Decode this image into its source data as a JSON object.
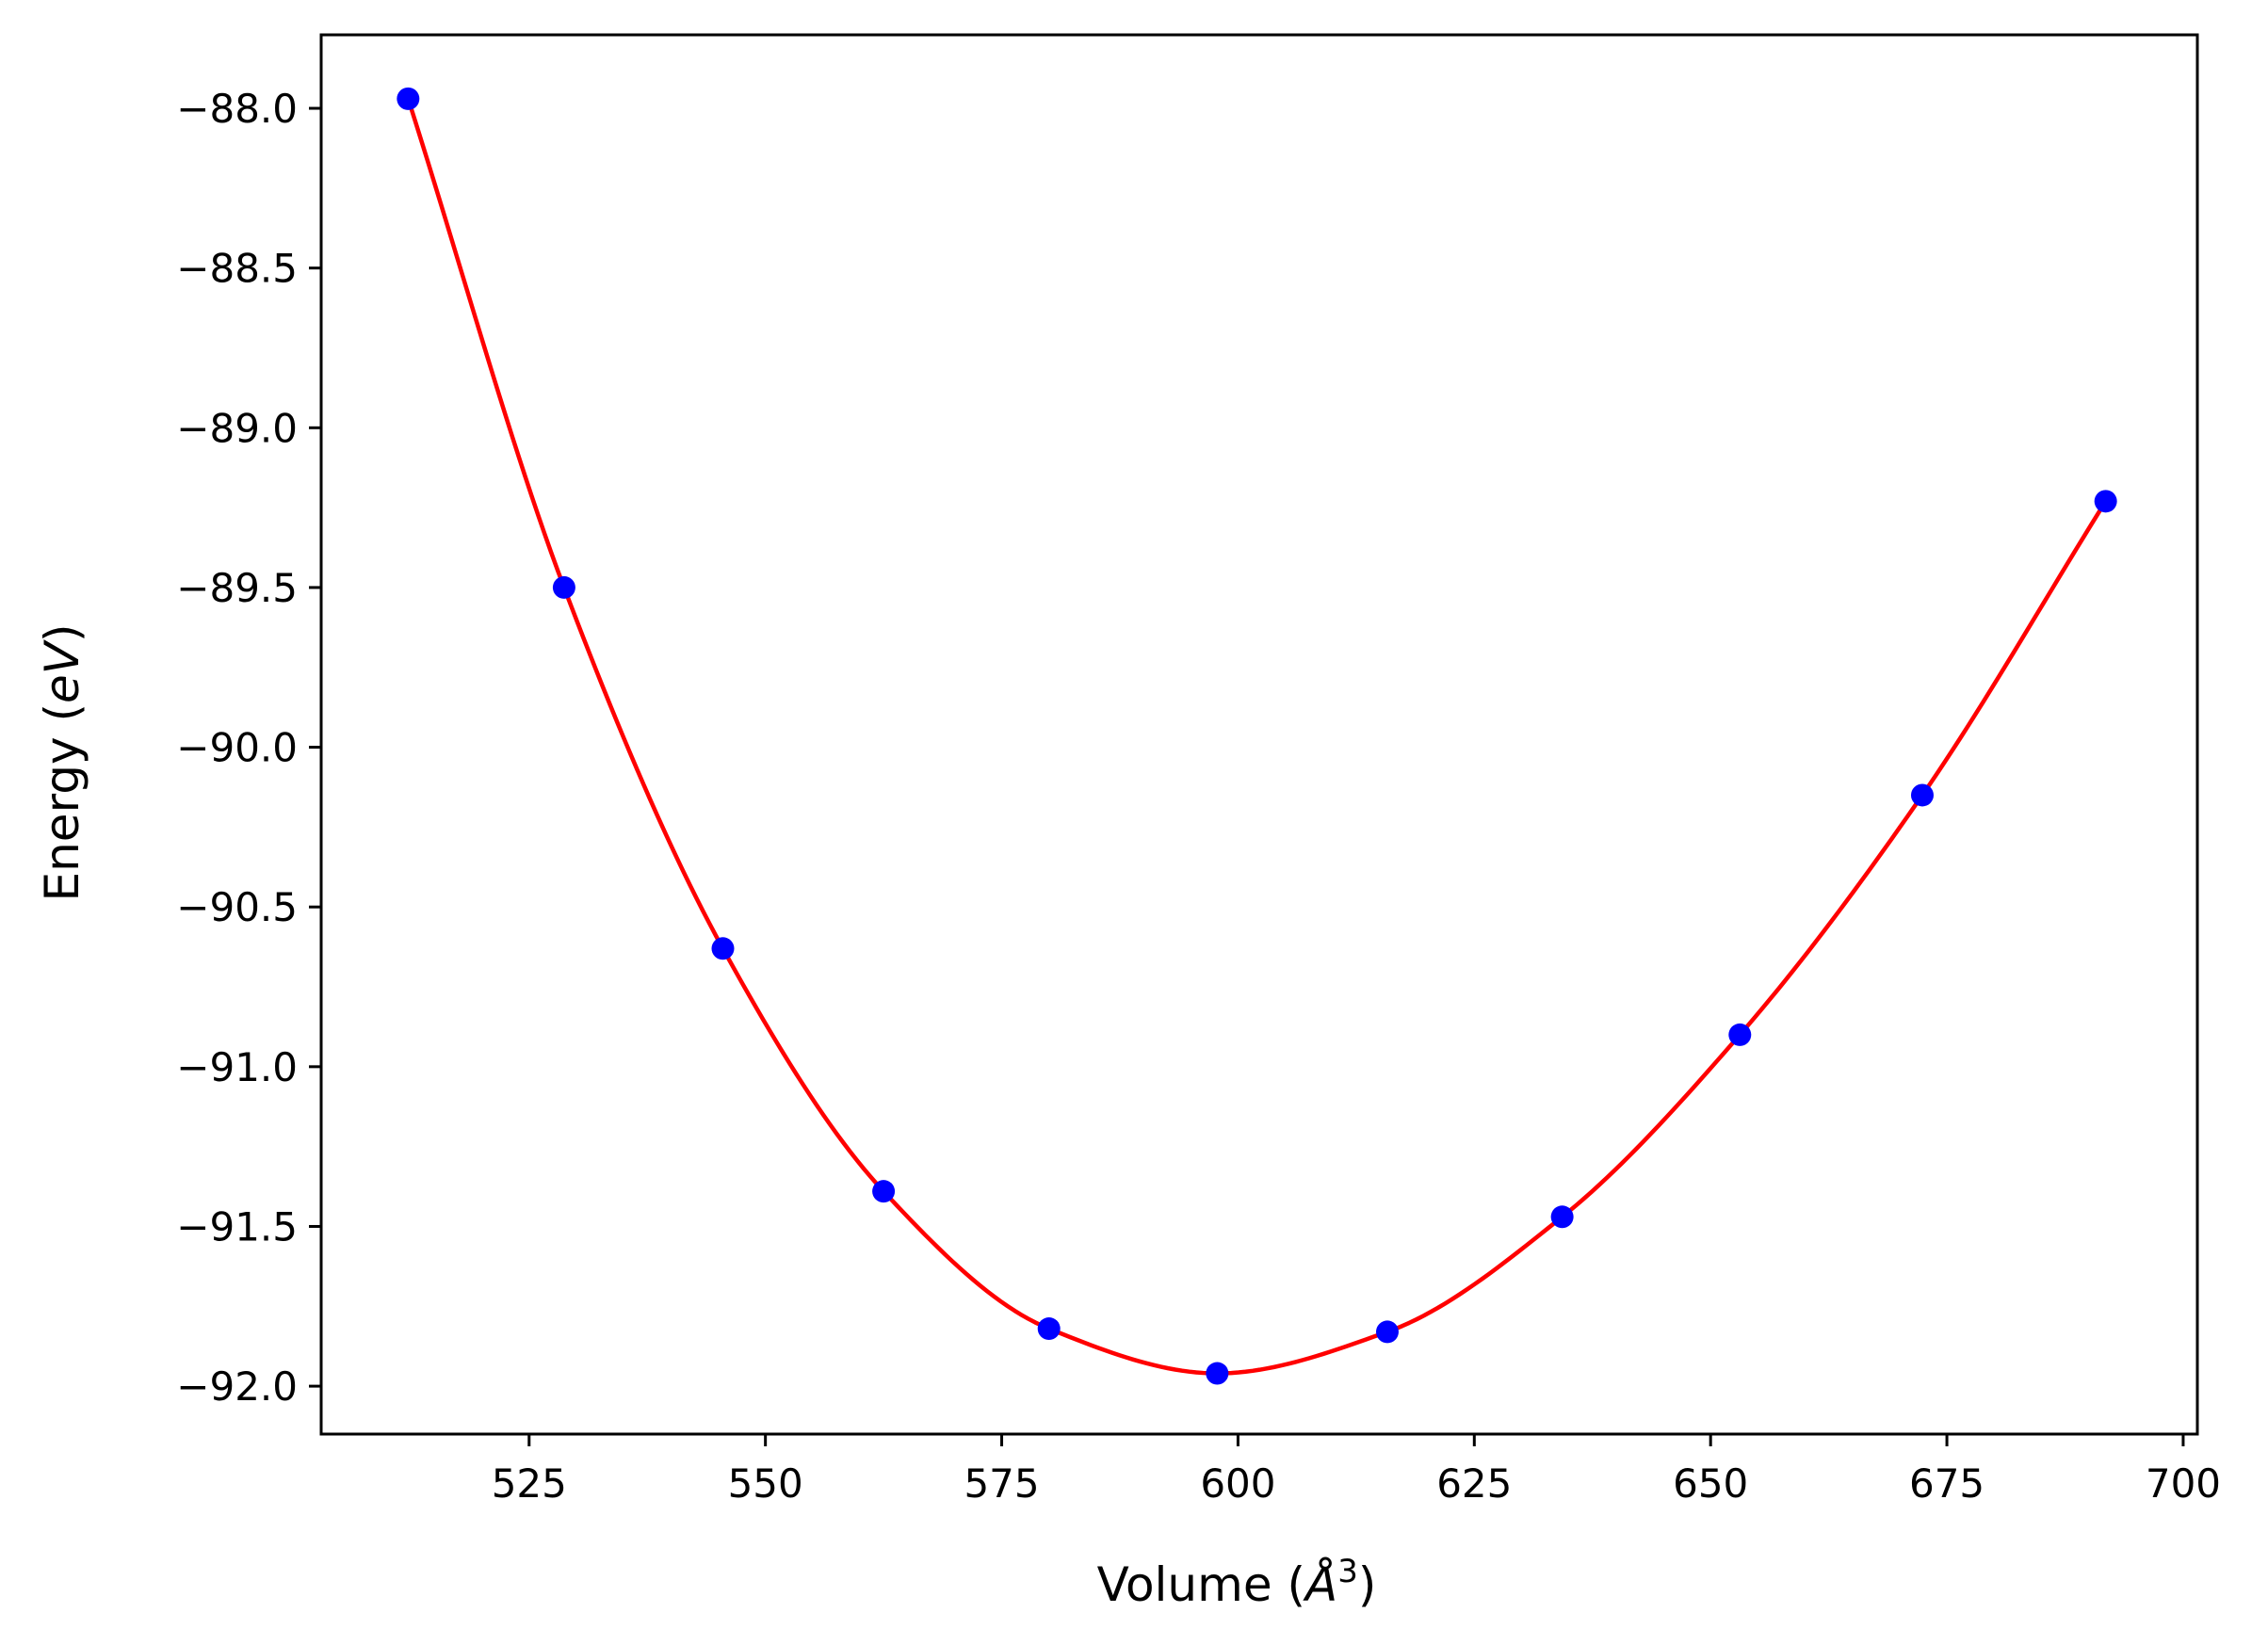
{
  "chart_data": {
    "type": "scatter",
    "title": "",
    "xlabel": {
      "prefix": "Volume (",
      "unit_symbol": "Å",
      "exponent": "3",
      "suffix": ")"
    },
    "ylabel": {
      "prefix": "Energy (",
      "unit_italic": "eV",
      "suffix": ")"
    },
    "xlim": [
      503.0,
      701.5
    ],
    "ylim": [
      -92.15,
      -87.77
    ],
    "x_ticks": [
      525,
      550,
      575,
      600,
      625,
      650,
      675,
      700
    ],
    "x_tick_labels": [
      "525",
      "550",
      "575",
      "600",
      "625",
      "650",
      "675",
      "700"
    ],
    "y_ticks": [
      -88.0,
      -88.5,
      -89.0,
      -89.5,
      -90.0,
      -90.5,
      -91.0,
      -91.5,
      -92.0
    ],
    "y_tick_labels": [
      "−88.0",
      "−88.5",
      "−89.0",
      "−89.5",
      "−90.0",
      "−90.5",
      "−91.0",
      "−91.5",
      "−92.0"
    ],
    "grid": false,
    "legend": "none",
    "series": [
      {
        "kind": "markers",
        "color": "#0000ff",
        "x": [
          512.2,
          528.7,
          545.5,
          562.5,
          580.0,
          597.8,
          615.8,
          634.3,
          653.1,
          672.4,
          691.8
        ],
        "y": [
          -87.97,
          -89.5,
          -90.63,
          -91.39,
          -91.82,
          -91.96,
          -91.83,
          -91.47,
          -90.9,
          -90.15,
          -89.23
        ]
      },
      {
        "kind": "fit-curve",
        "color": "#ff0000",
        "x": [
          512.2,
          528.7,
          545.5,
          562.5,
          580.0,
          597.8,
          615.8,
          634.3,
          653.1,
          672.4,
          691.8
        ],
        "y": [
          -87.97,
          -89.5,
          -90.63,
          -91.39,
          -91.82,
          -91.96,
          -91.83,
          -91.47,
          -90.9,
          -90.15,
          -89.23
        ]
      }
    ]
  }
}
